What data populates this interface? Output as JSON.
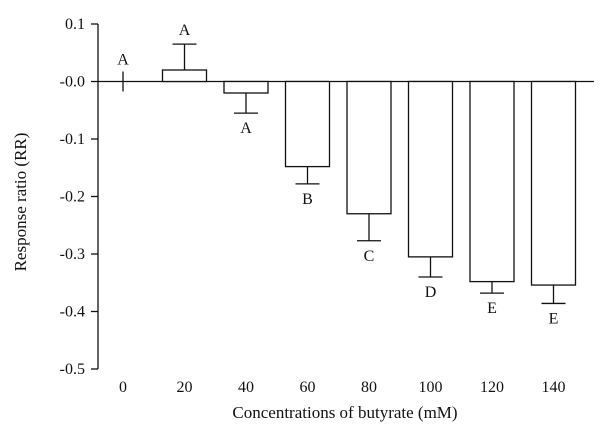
{
  "chart_data": {
    "type": "bar",
    "categories": [
      "0",
      "20",
      "40",
      "60",
      "80",
      "100",
      "120",
      "140"
    ],
    "values": [
      0.0,
      0.02,
      -0.02,
      -0.148,
      -0.23,
      -0.305,
      -0.348,
      -0.354
    ],
    "errors": [
      0.0,
      0.045,
      0.035,
      0.03,
      0.047,
      0.035,
      0.02,
      0.032
    ],
    "significance": [
      "A",
      "A",
      "A",
      "B",
      "C",
      "D",
      "E",
      "E"
    ],
    "title": "",
    "xlabel": "Concentrations of butyrate (mM)",
    "ylabel": "Response ratio (RR)",
    "ylim": [
      -0.5,
      0.1
    ],
    "yticks": [
      "0.1",
      "-0.0",
      "-0.1",
      "-0.2",
      "-0.3",
      "-0.4",
      "-0.5"
    ],
    "ytick_values": [
      0.1,
      0.0,
      -0.1,
      -0.2,
      -0.3,
      -0.4,
      -0.5
    ],
    "grid": false,
    "colors": {
      "bar_fill": "#ffffff",
      "bar_stroke": "#111111"
    }
  }
}
